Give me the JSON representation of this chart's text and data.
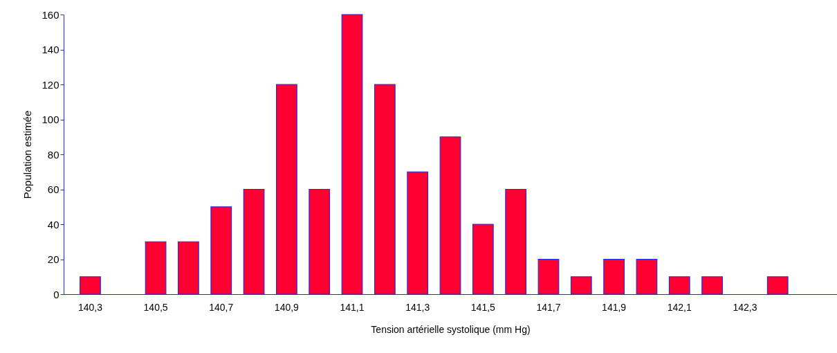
{
  "chart_data": {
    "type": "bar",
    "xlabel": "Tension artérielle systolique (mm Hg)",
    "ylabel": "Population estimée",
    "categories": [
      "140,3",
      null,
      "140,5",
      null,
      "140,7",
      null,
      "140,9",
      null,
      "141,1",
      null,
      "141,3",
      null,
      "141,5",
      null,
      "141,7",
      null,
      "141,9",
      null,
      "142,1",
      null,
      "142,3",
      null,
      null
    ],
    "values": [
      10,
      null,
      30,
      30,
      50,
      60,
      120,
      60,
      160,
      120,
      70,
      90,
      40,
      60,
      20,
      10,
      20,
      20,
      10,
      10,
      null,
      10,
      null
    ],
    "color": "#ff0033",
    "ylim": [
      0,
      160
    ],
    "yticks": [
      0,
      20,
      40,
      60,
      80,
      100,
      120,
      140,
      160
    ],
    "grid": false
  }
}
